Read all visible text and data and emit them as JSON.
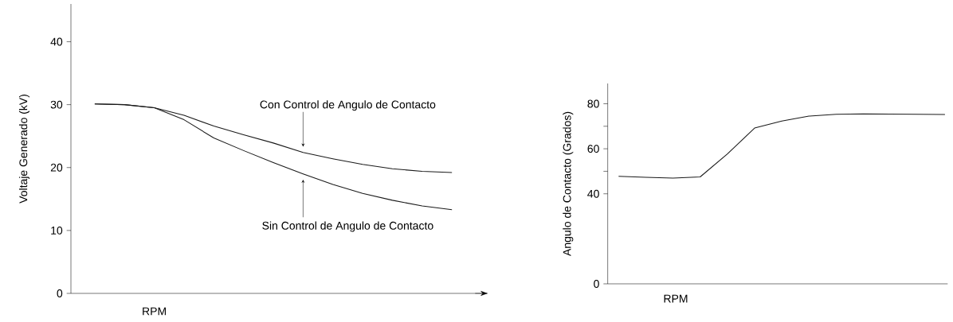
{
  "chart_data": [
    {
      "type": "line",
      "xlabel": "RPM",
      "ylabel": "Voltaje Generado (kV)",
      "categories": [
        null,
        null,
        null,
        null,
        null,
        null,
        null,
        null,
        null,
        null,
        null,
        null,
        null
      ],
      "ylim": [
        0,
        46
      ],
      "yticks": [
        0,
        10,
        20,
        30,
        40
      ],
      "tick_labels": "y",
      "legend": false,
      "series": [
        {
          "name": "Con Control de Angulo de Contacto",
          "color": "#1a1a1a",
          "values": [
            30.1,
            30.0,
            29.5,
            28.3,
            26.6,
            25.2,
            23.9,
            22.4,
            21.4,
            20.5,
            19.8,
            19.4,
            19.2
          ]
        },
        {
          "name": "Sin Control de Angulo de Contacto",
          "color": "#1a1a1a",
          "values": [
            30.1,
            30.0,
            29.5,
            27.6,
            24.7,
            22.7,
            20.8,
            19.0,
            17.3,
            15.9,
            14.8,
            13.9,
            13.3
          ]
        }
      ]
    },
    {
      "type": "line",
      "xlabel": "RPM",
      "ylabel": "Angulo de Contacto (Grados)",
      "categories": [
        null,
        null,
        null,
        null,
        null,
        null,
        null,
        null,
        null,
        null,
        null,
        null,
        null
      ],
      "ylim": [
        0,
        89
      ],
      "yticks": [
        0,
        40,
        {
          "value": 50,
          "label": null
        },
        60,
        {
          "value": 70,
          "label": null
        },
        80
      ],
      "tick_labels": "y",
      "legend": false,
      "series": [
        {
          "color": "#1a1a1a",
          "values": [
            47.8,
            47.3,
            47.0,
            47.5,
            57.7,
            69.2,
            72.3,
            74.5,
            75.3,
            75.5,
            75.4,
            75.3,
            75.2
          ]
        }
      ]
    }
  ]
}
